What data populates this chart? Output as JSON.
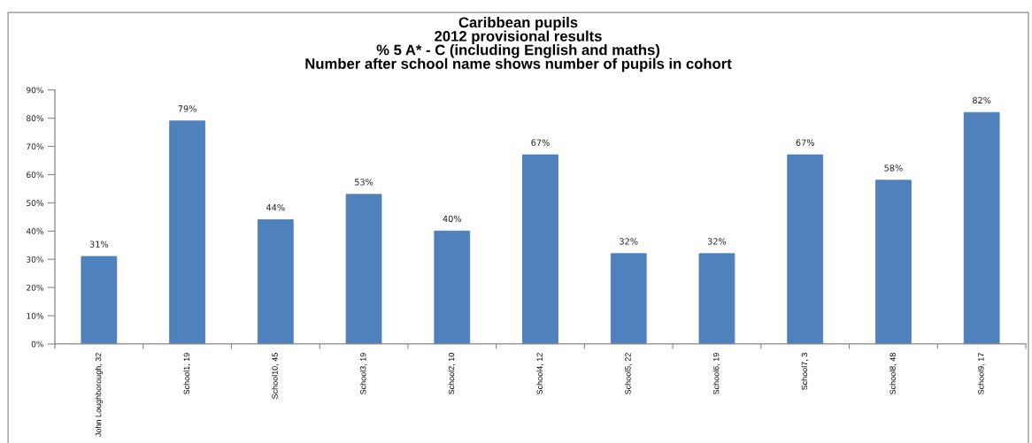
{
  "chart_data": {
    "type": "bar",
    "title": "Caribbean pupils\n2012 provisional results\n% 5 A* - C (including English and maths)\nNumber after school name shows number of pupils in cohort",
    "categories": [
      "John Loughborough, 32",
      "School1, 19",
      "School10, 45",
      "School3, 19",
      "School2, 10",
      "School4, 12",
      "School5, 22",
      "School6, 19",
      "School7, 3",
      "School8, 48",
      "School9, 17"
    ],
    "values": [
      31,
      79,
      44,
      53,
      40,
      67,
      32,
      32,
      67,
      58,
      82
    ],
    "value_labels": [
      "31%",
      "79%",
      "44%",
      "53%",
      "40%",
      "67%",
      "32%",
      "32%",
      "67%",
      "58%",
      "82%"
    ],
    "color": "#4f81bd",
    "ylim": [
      0,
      90
    ],
    "yticks": [
      {
        "value": 0,
        "label": "0%"
      },
      {
        "value": 10,
        "label": "10%"
      },
      {
        "value": 20,
        "label": "20%"
      },
      {
        "value": 30,
        "label": "30%"
      },
      {
        "value": 40,
        "label": "40%"
      },
      {
        "value": 50,
        "label": "50%"
      },
      {
        "value": 60,
        "label": "60%"
      },
      {
        "value": 70,
        "label": "70%"
      },
      {
        "value": 80,
        "label": "80%"
      },
      {
        "value": 90,
        "label": "90%"
      }
    ],
    "grid": false,
    "legend": false
  }
}
